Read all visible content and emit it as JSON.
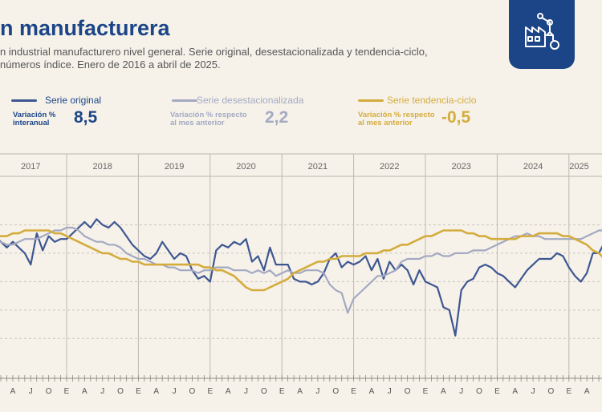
{
  "header": {
    "title": "n manufacturera",
    "subtitle_line1": "n industrial manufacturero nivel general. Serie original, desestacionalizada y tendencia-ciclo,",
    "subtitle_line2": "números índice. Enero de 2016 a abril de 2025."
  },
  "logo": {
    "icon": "industry-robot-arm-icon"
  },
  "legend": [
    {
      "name": "Serie original",
      "sub1": "Variación %",
      "sub2": "interanual",
      "value": "8,5",
      "color": "#3e5791",
      "text_color": "#1c4587"
    },
    {
      "name": "Serie desestacionalizada",
      "sub1": "Variación % respecto",
      "sub2": "al mes anterior",
      "value": "2,2",
      "color": "#a4a9c2",
      "text_color": "#a4a9c2"
    },
    {
      "name": "Serie tendencia-ciclo",
      "sub1": "Variación % respecto",
      "sub2": "al mes anterior",
      "value": "-0,5",
      "color": "#d4ac3d",
      "text_color": "#d4ac3d"
    }
  ],
  "chart_data": {
    "type": "line",
    "start": "2016-01",
    "end": "2025-04",
    "years": [
      "2017",
      "2018",
      "2019",
      "2020",
      "2021",
      "2022",
      "2023",
      "2024",
      "2025"
    ],
    "month_labels": [
      "E",
      "A",
      "J",
      "O"
    ],
    "ylim": [
      55,
      110
    ],
    "grid": true,
    "series": [
      {
        "name": "Serie original",
        "color": "#3e5791",
        "values": [
          96,
          94,
          92,
          94,
          92,
          90,
          86,
          97,
          91,
          96,
          94,
          95,
          95,
          97,
          99,
          101,
          99,
          102,
          100,
          99,
          101,
          99,
          96,
          93,
          91,
          89,
          88,
          90,
          94,
          91,
          88,
          90,
          89,
          84,
          81,
          82,
          80,
          91,
          93,
          92,
          94,
          93,
          95,
          87,
          89,
          84,
          92,
          86,
          86,
          86,
          81,
          80,
          80,
          79,
          80,
          83,
          88,
          90,
          85,
          87,
          86,
          87,
          89,
          84,
          88,
          81,
          87,
          84,
          86,
          84,
          79,
          84,
          80,
          79,
          78,
          71,
          70,
          61,
          77,
          80,
          81,
          85,
          86,
          85,
          83,
          82,
          80,
          78,
          81,
          84,
          86,
          88,
          88,
          88,
          90,
          89,
          85,
          82,
          80,
          83,
          90,
          90,
          94,
          95,
          95,
          97,
          96,
          98,
          99,
          100,
          101,
          98,
          95,
          94,
          93,
          94,
          94,
          89,
          94,
          95,
          98,
          98,
          97,
          94,
          93,
          97,
          96,
          97,
          95,
          92,
          89,
          84,
          81,
          76,
          73,
          74,
          74,
          79,
          81,
          80,
          82,
          79,
          85,
          84,
          85,
          81,
          86,
          83,
          77,
          88,
          93,
          91,
          94,
          92,
          91,
          90,
          92,
          85,
          83,
          82,
          81,
          85,
          86,
          89,
          94,
          94
        ]
      },
      {
        "name": "Serie desestacionalizada",
        "color": "#a4a9c2",
        "values": [
          94,
          94,
          93,
          93,
          94,
          95,
          95,
          95,
          96,
          97,
          98,
          98,
          99,
          99,
          98,
          96,
          95,
          94,
          94,
          93,
          93,
          92,
          90,
          89,
          88,
          88,
          87,
          86,
          86,
          85,
          85,
          84,
          84,
          84,
          83,
          84,
          84,
          85,
          85,
          85,
          84,
          84,
          84,
          83,
          84,
          83,
          84,
          82,
          83,
          84,
          83,
          83,
          84,
          84,
          84,
          83,
          79,
          77,
          76,
          69,
          74,
          76,
          78,
          80,
          82,
          82,
          83,
          84,
          87,
          88,
          88,
          88,
          89,
          89,
          90,
          89,
          89,
          90,
          90,
          90,
          91,
          91,
          91,
          92,
          93,
          94,
          95,
          96,
          96,
          97,
          96,
          96,
          95,
          95,
          95,
          95,
          95,
          95,
          95,
          96,
          97,
          98,
          98,
          98,
          97,
          96,
          95,
          94,
          94,
          93,
          92,
          92,
          91,
          90,
          89,
          87,
          86,
          84,
          82,
          80,
          78,
          77,
          77,
          79,
          80,
          80,
          79,
          79,
          80,
          81,
          83,
          84,
          85,
          86,
          86,
          87,
          86,
          86,
          85,
          87,
          86,
          85,
          86,
          86,
          85,
          85,
          86,
          85
        ]
      },
      {
        "name": "Serie tendencia-ciclo",
        "color": "#d4ac3d",
        "values": [
          96,
          96,
          96,
          97,
          97,
          98,
          98,
          98,
          98,
          98,
          97,
          97,
          96,
          95,
          94,
          93,
          92,
          91,
          90,
          90,
          89,
          88,
          88,
          87,
          87,
          86,
          86,
          86,
          86,
          86,
          86,
          86,
          86,
          86,
          86,
          85,
          85,
          84,
          84,
          83,
          82,
          80,
          78,
          77,
          77,
          77,
          78,
          79,
          80,
          81,
          83,
          84,
          85,
          86,
          87,
          87,
          88,
          88,
          89,
          89,
          89,
          89,
          90,
          90,
          90,
          91,
          91,
          92,
          93,
          93,
          94,
          95,
          96,
          96,
          97,
          98,
          98,
          98,
          98,
          97,
          97,
          96,
          96,
          95,
          95,
          95,
          95,
          95,
          96,
          96,
          96,
          97,
          97,
          97,
          97,
          96,
          96,
          95,
          94,
          93,
          91,
          90,
          88,
          87,
          85,
          84,
          83,
          82,
          81,
          81,
          81,
          82,
          82,
          83,
          84,
          85,
          85,
          86,
          86,
          86,
          86,
          86,
          86,
          86,
          86,
          86,
          85,
          85,
          84
        ]
      }
    ]
  }
}
